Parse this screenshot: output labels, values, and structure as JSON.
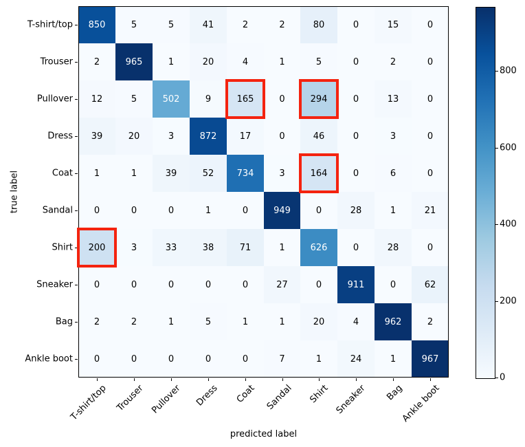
{
  "chart_data": {
    "type": "heatmap",
    "title": "",
    "xlabel": "predicted label",
    "ylabel": "true label",
    "categories": [
      "T-shirt/top",
      "Trouser",
      "Pullover",
      "Dress",
      "Coat",
      "Sandal",
      "Shirt",
      "Sneaker",
      "Bag",
      "Ankle boot"
    ],
    "matrix": [
      [
        850,
        5,
        5,
        41,
        2,
        2,
        80,
        0,
        15,
        0
      ],
      [
        2,
        965,
        1,
        20,
        4,
        1,
        5,
        0,
        2,
        0
      ],
      [
        12,
        5,
        502,
        9,
        165,
        0,
        294,
        0,
        13,
        0
      ],
      [
        39,
        20,
        3,
        872,
        17,
        0,
        46,
        0,
        3,
        0
      ],
      [
        1,
        1,
        39,
        52,
        734,
        3,
        164,
        0,
        6,
        0
      ],
      [
        0,
        0,
        0,
        1,
        0,
        949,
        0,
        28,
        1,
        21
      ],
      [
        200,
        3,
        33,
        38,
        71,
        1,
        626,
        0,
        28,
        0
      ],
      [
        0,
        0,
        0,
        0,
        0,
        27,
        0,
        911,
        0,
        62
      ],
      [
        2,
        2,
        1,
        5,
        1,
        1,
        20,
        4,
        962,
        2
      ],
      [
        0,
        0,
        0,
        0,
        0,
        7,
        1,
        24,
        1,
        967
      ]
    ],
    "vmin": 0,
    "vmax": 967,
    "colormap_name": "Blues",
    "colormap_stops": [
      [
        0.0,
        "#f7fbff"
      ],
      [
        0.125,
        "#deebf7"
      ],
      [
        0.25,
        "#c6dbef"
      ],
      [
        0.375,
        "#9ecae1"
      ],
      [
        0.5,
        "#6baed6"
      ],
      [
        0.625,
        "#4292c6"
      ],
      [
        0.75,
        "#2171b5"
      ],
      [
        0.875,
        "#08519c"
      ],
      [
        1.0,
        "#08306b"
      ]
    ],
    "colorbar_ticks": [
      0,
      200,
      400,
      600,
      800
    ],
    "legend_position": "right-colorbar",
    "grid": false,
    "annotation_text_colors": {
      "dark": "#000000",
      "light": "#ffffff"
    },
    "highlight_color": "#f4230f",
    "highlights": [
      {
        "row": 2,
        "col": 4,
        "value": 165
      },
      {
        "row": 2,
        "col": 6,
        "value": 294
      },
      {
        "row": 4,
        "col": 6,
        "value": 164
      },
      {
        "row": 6,
        "col": 0,
        "value": 200
      }
    ]
  }
}
